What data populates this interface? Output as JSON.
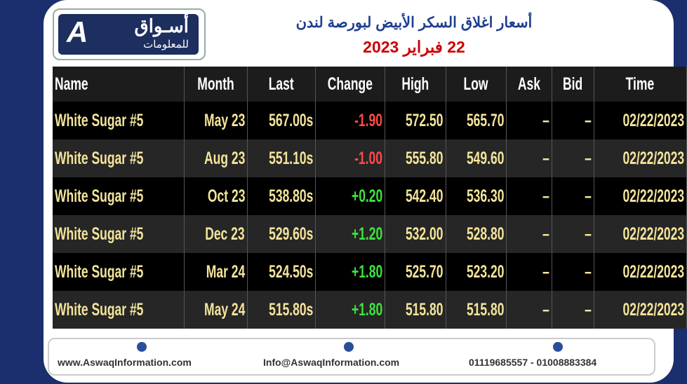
{
  "logo": {
    "name": "أسـواق",
    "subtitle": "للمعلومات"
  },
  "header": {
    "title": "أسعار اغلاق السكر الأبيض لبورصة لندن",
    "date": "22 فبراير 2023"
  },
  "table": {
    "columns": [
      "Name",
      "Month",
      "Last",
      "Change",
      "High",
      "Low",
      "Ask",
      "Bid",
      "Time"
    ],
    "rows": [
      [
        "White Sugar #5",
        "May 23",
        "567.00s",
        "-1.90",
        "572.50",
        "565.70",
        "–",
        "–",
        "02/22/2023"
      ],
      [
        "White Sugar #5",
        "Aug 23",
        "551.10s",
        "-1.00",
        "555.80",
        "549.60",
        "–",
        "–",
        "02/22/2023"
      ],
      [
        "White Sugar #5",
        "Oct 23",
        "538.80s",
        "+0.20",
        "542.40",
        "536.30",
        "–",
        "–",
        "02/22/2023"
      ],
      [
        "White Sugar #5",
        "Dec 23",
        "529.60s",
        "+1.20",
        "532.00",
        "528.80",
        "–",
        "–",
        "02/22/2023"
      ],
      [
        "White Sugar #5",
        "Mar 24",
        "524.50s",
        "+1.80",
        "525.70",
        "523.20",
        "–",
        "–",
        "02/22/2023"
      ],
      [
        "White Sugar #5",
        "May 24",
        "515.80s",
        "+1.80",
        "515.80",
        "515.80",
        "–",
        "–",
        "02/22/2023"
      ]
    ]
  },
  "footer": {
    "website": "www.AswaqInformation.com",
    "email": "Info@AswaqInformation.com",
    "phone": "01119685557 - 01008883384"
  }
}
